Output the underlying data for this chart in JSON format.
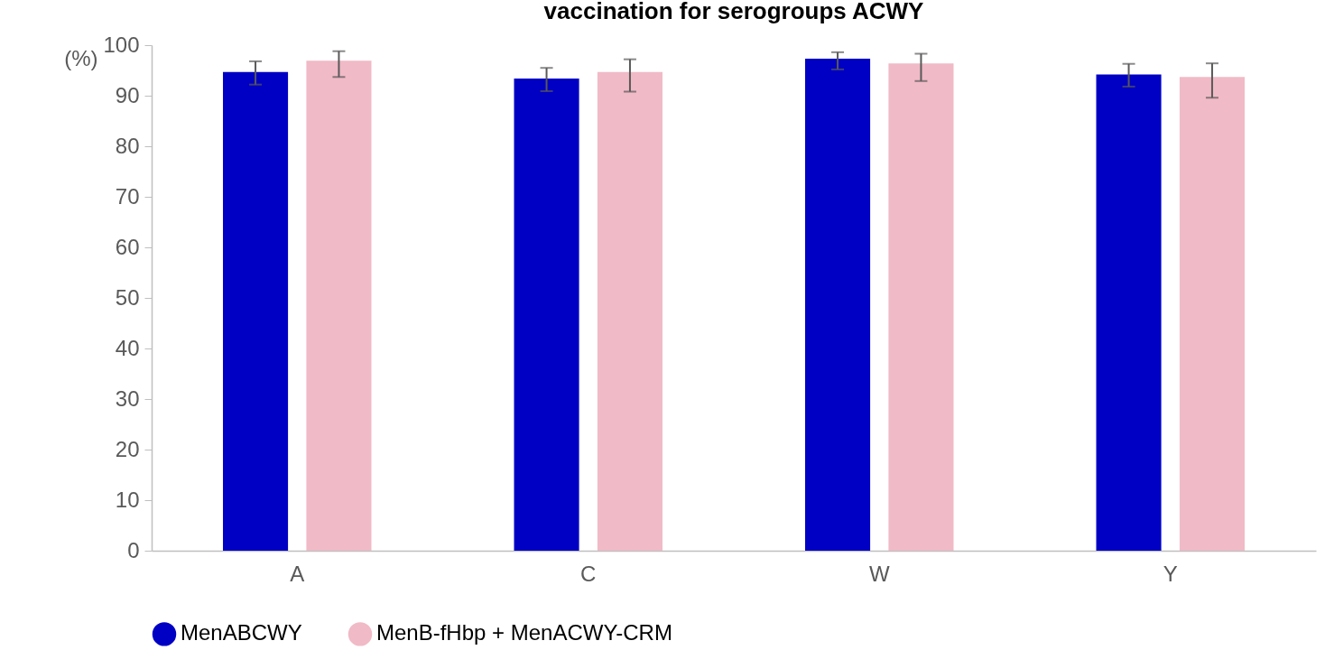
{
  "chart_data": {
    "type": "bar",
    "title": "vaccination for serogroups ACWY",
    "ylabel": "(%)",
    "categories": [
      "A",
      "C",
      "W",
      "Y"
    ],
    "series": [
      {
        "name": "MenABCWY",
        "color": "#0000c4",
        "values": [
          94.7,
          93.4,
          97.3,
          94.2
        ],
        "errors": [
          [
            92.2,
            96.8
          ],
          [
            90.9,
            95.5
          ],
          [
            95.2,
            98.6
          ],
          [
            91.8,
            96.3
          ]
        ]
      },
      {
        "name": "MenB-fHbp + MenACWY-CRM",
        "color": "#f0bac6",
        "values": [
          96.9,
          94.7,
          96.4,
          93.7
        ],
        "errors": [
          [
            93.7,
            98.8
          ],
          [
            90.8,
            97.2
          ],
          [
            92.9,
            98.3
          ],
          [
            89.6,
            96.4
          ]
        ]
      }
    ],
    "ylim": [
      0,
      100
    ],
    "yticks": [
      0,
      10,
      20,
      30,
      40,
      50,
      60,
      70,
      80,
      90,
      100
    ],
    "grid": false,
    "legend": "bottom"
  }
}
